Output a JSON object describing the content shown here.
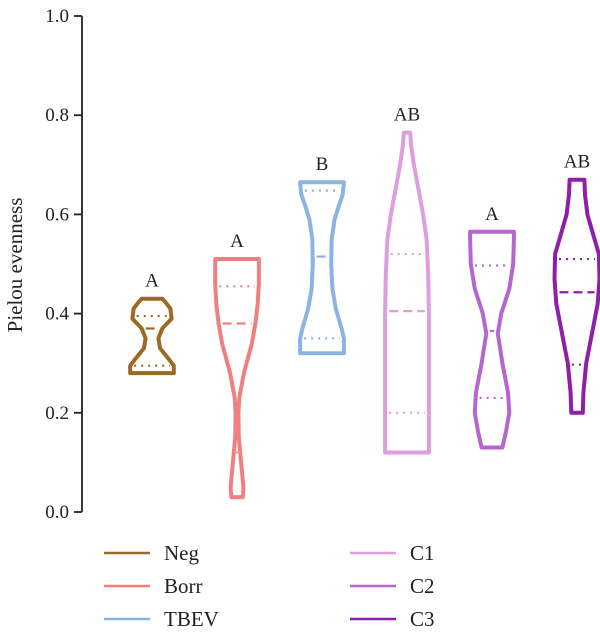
{
  "chart_data": {
    "type": "violin",
    "ylabel": "Pielou evenness",
    "ylim": [
      0.0,
      1.0
    ],
    "yticks": [
      "0.0",
      "0.2",
      "0.4",
      "0.6",
      "0.8",
      "1.0"
    ],
    "grid": false,
    "legend_placement": "bottom",
    "series": [
      {
        "name": "Neg",
        "color": "#9c6a24",
        "min": 0.28,
        "max": 0.43,
        "q1": 0.295,
        "median": 0.37,
        "q3": 0.395,
        "significance": "A",
        "shape": [
          [
            0.28,
            0.95
          ],
          [
            0.295,
            0.95
          ],
          [
            0.31,
            0.7
          ],
          [
            0.33,
            0.35
          ],
          [
            0.35,
            0.28
          ],
          [
            0.37,
            0.45
          ],
          [
            0.39,
            0.85
          ],
          [
            0.41,
            0.8
          ],
          [
            0.425,
            0.55
          ],
          [
            0.43,
            0.45
          ]
        ]
      },
      {
        "name": "Borr",
        "color": "#f08080",
        "min": 0.03,
        "max": 0.51,
        "q1": 0.12,
        "median": 0.38,
        "q3": 0.455,
        "significance": "A",
        "shape": [
          [
            0.03,
            0.25
          ],
          [
            0.05,
            0.28
          ],
          [
            0.1,
            0.18
          ],
          [
            0.15,
            0.08
          ],
          [
            0.2,
            0.06
          ],
          [
            0.23,
            0.1
          ],
          [
            0.28,
            0.3
          ],
          [
            0.34,
            0.65
          ],
          [
            0.38,
            0.8
          ],
          [
            0.42,
            0.9
          ],
          [
            0.46,
            0.95
          ],
          [
            0.5,
            0.95
          ],
          [
            0.51,
            0.95
          ]
        ]
      },
      {
        "name": "TBEV",
        "color": "#8fb3e0",
        "min": 0.32,
        "max": 0.665,
        "q1": 0.35,
        "median": 0.515,
        "q3": 0.648,
        "significance": "B",
        "shape": [
          [
            0.32,
            0.95
          ],
          [
            0.35,
            0.95
          ],
          [
            0.37,
            0.85
          ],
          [
            0.41,
            0.6
          ],
          [
            0.45,
            0.45
          ],
          [
            0.5,
            0.4
          ],
          [
            0.55,
            0.42
          ],
          [
            0.59,
            0.55
          ],
          [
            0.62,
            0.75
          ],
          [
            0.64,
            0.9
          ],
          [
            0.665,
            0.95
          ]
        ]
      },
      {
        "name": "C1",
        "color": "#dd9ee0",
        "min": 0.12,
        "max": 0.765,
        "q1": 0.2,
        "median": 0.405,
        "q3": 0.52,
        "significance": "AB",
        "shape": [
          [
            0.12,
            0.95
          ],
          [
            0.2,
            0.95
          ],
          [
            0.3,
            0.95
          ],
          [
            0.4,
            0.95
          ],
          [
            0.48,
            0.92
          ],
          [
            0.55,
            0.85
          ],
          [
            0.6,
            0.7
          ],
          [
            0.65,
            0.5
          ],
          [
            0.7,
            0.3
          ],
          [
            0.74,
            0.18
          ],
          [
            0.765,
            0.14
          ]
        ]
      },
      {
        "name": "C2",
        "color": "#b566d0",
        "min": 0.13,
        "max": 0.565,
        "q1": 0.23,
        "median": 0.365,
        "q3": 0.497,
        "significance": "A",
        "shape": [
          [
            0.13,
            0.45
          ],
          [
            0.16,
            0.6
          ],
          [
            0.2,
            0.75
          ],
          [
            0.24,
            0.7
          ],
          [
            0.3,
            0.45
          ],
          [
            0.36,
            0.25
          ],
          [
            0.4,
            0.4
          ],
          [
            0.45,
            0.75
          ],
          [
            0.5,
            0.92
          ],
          [
            0.55,
            0.95
          ],
          [
            0.565,
            0.95
          ]
        ]
      },
      {
        "name": "C3",
        "color": "#8e1fa6",
        "min": 0.2,
        "max": 0.67,
        "q1": 0.297,
        "median": 0.443,
        "q3": 0.51,
        "significance": "AB",
        "shape": [
          [
            0.2,
            0.25
          ],
          [
            0.24,
            0.28
          ],
          [
            0.3,
            0.4
          ],
          [
            0.36,
            0.65
          ],
          [
            0.42,
            0.9
          ],
          [
            0.47,
            0.98
          ],
          [
            0.52,
            0.95
          ],
          [
            0.56,
            0.7
          ],
          [
            0.6,
            0.45
          ],
          [
            0.64,
            0.35
          ],
          [
            0.67,
            0.32
          ]
        ]
      }
    ]
  }
}
